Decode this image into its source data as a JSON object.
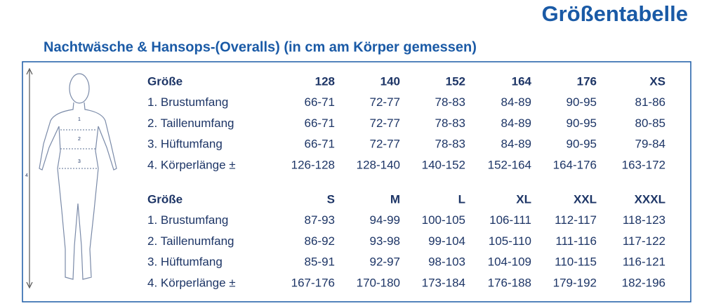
{
  "header": {
    "title": "Größentabelle",
    "subtitle": "Nachtwäsche & Hansops-(Overalls) (in cm am Körper gemessen)"
  },
  "figure": {
    "markers": [
      "1",
      "2",
      "3",
      "4"
    ]
  },
  "tables": [
    {
      "header": [
        "Größe",
        "128",
        "140",
        "152",
        "164",
        "176",
        "XS"
      ],
      "rows": [
        [
          "1. Brustumfang",
          "66-71",
          "72-77",
          "78-83",
          "84-89",
          "90-95",
          "81-86"
        ],
        [
          "2. Taillenumfang",
          "66-71",
          "72-77",
          "78-83",
          "84-89",
          "90-95",
          "80-85"
        ],
        [
          "3. Hüftumfang",
          "66-71",
          "72-77",
          "78-83",
          "84-89",
          "90-95",
          "79-84"
        ],
        [
          "4. Körperlänge ±",
          "126-128",
          "128-140",
          "140-152",
          "152-164",
          "164-176",
          "163-172"
        ]
      ]
    },
    {
      "header": [
        "Größe",
        "S",
        "M",
        "L",
        "XL",
        "XXL",
        "XXXL"
      ],
      "rows": [
        [
          "1. Brustumfang",
          "87-93",
          "94-99",
          "100-105",
          "106-111",
          "112-117",
          "118-123"
        ],
        [
          "2. Taillenumfang",
          "86-92",
          "93-98",
          "99-104",
          "105-110",
          "111-116",
          "117-122"
        ],
        [
          "3. Hüftumfang",
          "85-91",
          "92-97",
          "98-103",
          "104-109",
          "110-115",
          "116-121"
        ],
        [
          "4. Körperlänge ±",
          "167-176",
          "170-180",
          "173-184",
          "176-188",
          "179-192",
          "182-196"
        ]
      ]
    }
  ]
}
